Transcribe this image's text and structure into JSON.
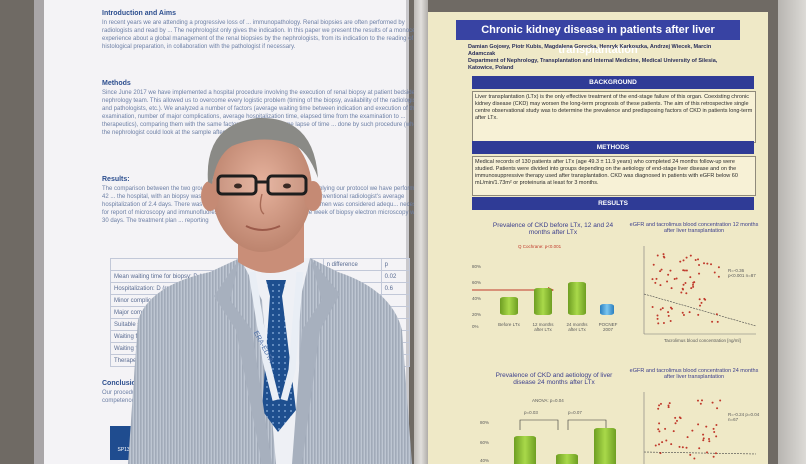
{
  "left_poster": {
    "intro_heading": "Introduction and Aims",
    "intro_text": "In recent years we are attending a progressive loss of ... immunopathology. Renal biopsies are often performed by radiologists and read by ... The nephrologist only gives the indication. In this paper we present the results of a monocentric experience about a global management of the renal biopsies by the nephrologists, from its indication to the reading of the histological preparation, in collaboration with the pathologist if necessary.",
    "methods_heading": "Methods",
    "methods_text": "Since June 2017 we have implemented a hospital procedure involving the execution of renal biopsy at patient bedside by a nephrology team. This allowed us to overcome every logistic problem (timing of the biopsy, availability of the radiologists and pathologists, etc.). We analyzed a number of factors (average waiting time between indication and execution of the examination, number of major complications, average hospitalization time, elapsed time from the examination to ... therapeutics), comparing them with the same factors detected in a same lapse of time ... done by such procedure (when the nephrologist could look at the sample after ...",
    "results_heading": "Results:",
    "results_text": "The comparison between the two groups is expr... perform the renal biopsy. By applying our protocol we have performed 42 ... the hospital, with an biopsy was 6 days. All procedures were performed ... conventional radiologist's average hospitalization of 2.4 days. There was no ... port, both light involvement. The specimen was considered adequ... necessary for report of microscopy and immunofluorescence, was performed ... within one week of biopsy electron microscopy was 30 days. The treatment plan ... reporting",
    "table_header": [
      "",
      "protocol",
      "n difference",
      "p"
    ],
    "table_rows": [
      [
        "Mean waiting time for biopsy: D (range)",
        "",
        "",
        "0.02"
      ],
      [
        "Hospitalization: D (range)",
        "",
        "",
        "0.6"
      ],
      [
        "Minor complica",
        "",
        "",
        ""
      ],
      [
        "Major compl",
        "",
        "",
        ""
      ],
      [
        "Suitable spe",
        "",
        "",
        ""
      ],
      [
        "Waiting for biopsy",
        "",
        "",
        ""
      ],
      [
        "Waiting for EM",
        "",
        "",
        ""
      ],
      [
        "Therapeutic p",
        "",
        "",
        ""
      ]
    ],
    "conclusions_heading": "Conclusions",
    "conclusions_text": "Our procedure, i... competence, prov... skills.",
    "badge_text": "SP136"
  },
  "right_poster": {
    "title": "Chronic kidney disease in patients after liver transplantation",
    "authors": "Damian Gojowy, Piotr Kubis, Magdalena Gorecka, Henryk Karkoszka, Andrzej Wiecek, Marcin Adamczak",
    "affiliation": "Department of Nephrology, Transplantation and Internal Medicine, Medical University of Silesia, Katowice, Poland",
    "background_label": "BACKGROUND",
    "background_text": "Liver transplantation (LTx) is the only effective treatment of the end-stage failure of this organ. Coexisting chronic kidney disease (CKD) may worsen the long-term prognosis of these patients. The aim of this retrospective single centre observational study was to determine the prevalence and predisposing factors of CKD in patients long-term after LTx.",
    "methods_label": "METHODS",
    "methods_text": "Medical records of 130 patients after LTx (age 49.3 ± 11.9 years) who completed 24 months follow-up were studied. Patients were divided into groups depending on the aetiology of end-stage liver disease and on the immunosuppressive therapy used after transplantation. CKD was diagnosed in patients with eGFR below 60 mL/min/1.73m² or proteinuria at least for 3 months.",
    "results_label": "RESULTS",
    "chart1_title": "Prevalence of CKD before LTx, 12 and 24 months after LTx",
    "chart1_annotation": "Q Cochrane: p<0.001",
    "chart1_yticks": [
      "80%",
      "60%",
      "40%",
      "20%",
      "0%"
    ],
    "chart1_xlabels": [
      "Before LTx",
      "12 months after LTx",
      "24 months after LTx",
      "POCNEF 2007"
    ],
    "chart2_title": "eGFR and tacrolimus blood concentration 12 months after liver transplantation",
    "chart2_stats": "R=-0.36 p<0.001 n=87",
    "chart2_xlabel": "Tacrolimus blood concentration [ng/ml]",
    "chart3_title": "Prevalence of CKD and aetiology of liver disease 24 months after LTx",
    "chart3_annotation": "ANOVA: p=0.04",
    "chart3_pvals": [
      "p=0.03",
      "p=0.07"
    ],
    "chart3_yticks": [
      "80%",
      "60%",
      "40%"
    ],
    "chart4_title": "eGFR and tacrolimus blood concentration 24 months after liver transplantation",
    "chart4_stats": "R=-0.24 p=0.04 n=67",
    "colors": {
      "title_bar": "#3843a3",
      "cylinder": "#8cc63f",
      "poster_bg": "#efe9c7"
    }
  },
  "person": {
    "lanyard_text": "ERA-EDTA",
    "photo_subject": "man in grey seersucker suit with glasses standing in front of posters"
  }
}
